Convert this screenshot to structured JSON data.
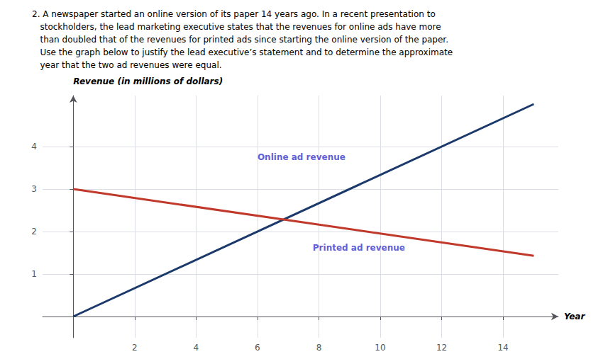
{
  "chart_data": {
    "type": "line",
    "title": "2. A newspaper started an online version of its paper 14 years ago. In a recent presentation to\n   stockholders, the lead marketing executive states that the revenues for online ads have more\n   than doubled that of the revenues for printed ads since starting the online version of the paper.\n   Use the graph below to justify the lead executive’s statement and to determine the approximate\n   year that the two ad revenues were equal.",
    "x_label": "Year",
    "y_label": "Revenue (in millions of dollars)",
    "x": [
      0,
      15
    ],
    "series": [
      {
        "color": "#1b3a6b",
        "values": [
          0,
          5.0
        ]
      },
      {
        "color": "#c0392b",
        "values": [
          3.0,
          1.43
        ]
      }
    ],
    "annotations": [
      {
        "text": "Online ad revenue",
        "x": 6.0,
        "y": 3.75,
        "color": "#3333cc"
      },
      {
        "text": "Printed ad revenue",
        "x": 7.8,
        "y": 1.62,
        "color": "#3333cc"
      }
    ],
    "xlim": [
      -1.0,
      15.8
    ],
    "ylim": [
      -0.5,
      5.2
    ],
    "xticks": [
      2,
      4,
      6,
      8,
      10,
      12,
      14
    ],
    "yticks": [
      1,
      2,
      3,
      4
    ],
    "grid": true
  }
}
